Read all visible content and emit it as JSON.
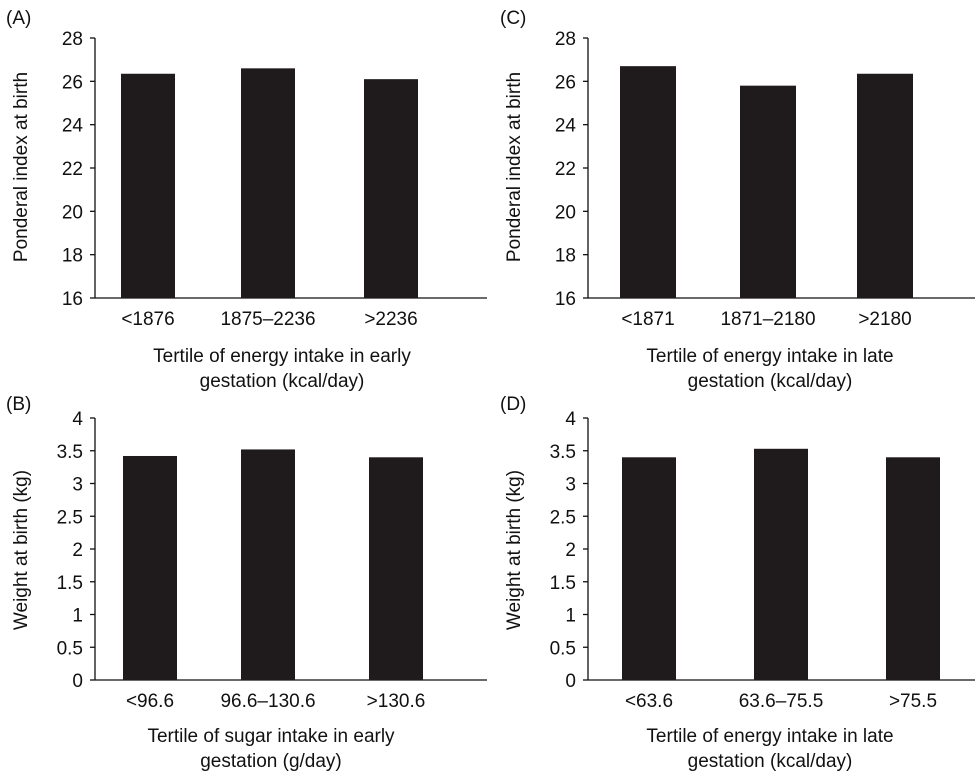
{
  "chart_data": [
    {
      "panel": "(A)",
      "type": "bar",
      "categories": [
        "<1876",
        "1875–2236",
        ">2236"
      ],
      "values": [
        26.35,
        26.6,
        26.1
      ],
      "ylim": [
        16,
        28
      ],
      "yticks": [
        "16",
        "18",
        "20",
        "22",
        "24",
        "26",
        "28"
      ],
      "ylabel": "Ponderal index at birth",
      "xlabel": [
        "Tertile of energy intake in early",
        "gestation (kcal/day)"
      ]
    },
    {
      "panel": "(C)",
      "type": "bar",
      "categories": [
        "<1871",
        "1871–2180",
        ">2180"
      ],
      "values": [
        26.7,
        25.8,
        26.35
      ],
      "ylim": [
        16,
        28
      ],
      "yticks": [
        "16",
        "18",
        "20",
        "22",
        "24",
        "26",
        "28"
      ],
      "ylabel": "Ponderal index at birth",
      "xlabel": [
        "Tertile of energy intake in late",
        "gestation (kcal/day)"
      ]
    },
    {
      "panel": "(B)",
      "type": "bar",
      "categories": [
        "<96.6",
        "96.6–130.6",
        ">130.6"
      ],
      "values": [
        3.42,
        3.52,
        3.4
      ],
      "ylim": [
        0,
        4
      ],
      "yticks": [
        "0",
        "0.5",
        "1",
        "1.5",
        "2",
        "2.5",
        "3",
        "3.5",
        "4"
      ],
      "ylabel": "Weight at birth (kg)",
      "xlabel": [
        "Tertile of sugar intake in early",
        "gestation (g/day)"
      ]
    },
    {
      "panel": "(D)",
      "type": "bar",
      "categories": [
        "<63.6",
        "63.6–75.5",
        ">75.5"
      ],
      "values": [
        3.4,
        3.53,
        3.4
      ],
      "ylim": [
        0,
        4
      ],
      "yticks": [
        "0",
        "0.5",
        "1",
        "1.5",
        "2",
        "2.5",
        "3",
        "3.5",
        "4"
      ],
      "ylabel": "Weight at birth (kg)",
      "xlabel": [
        "Tertile of energy intake in late",
        "gestation (kcal/day)"
      ]
    }
  ]
}
